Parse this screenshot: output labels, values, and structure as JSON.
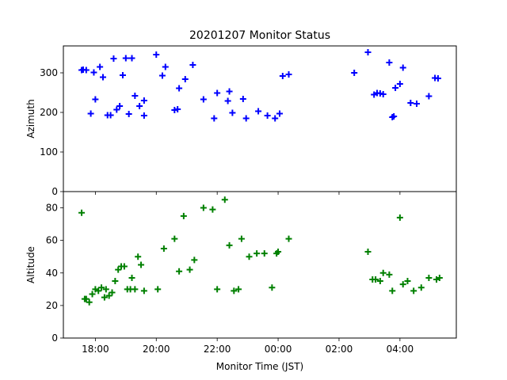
{
  "chart_data": {
    "type": "scatter",
    "title": "20201207 Monitor Status",
    "xlabel": "Monitor Time (JST)",
    "x_tick_labels": [
      "18:00",
      "20:00",
      "22:00",
      "00:00",
      "02:00",
      "04:00"
    ],
    "x_tick_hours": [
      18,
      20,
      22,
      24,
      26,
      28
    ],
    "xlim_hours": [
      16.95,
      29.85
    ],
    "marker": "plus",
    "panels": [
      {
        "ylabel": "Azimuth",
        "ylim": [
          0,
          368
        ],
        "y_ticks": [
          0,
          100,
          200,
          300
        ],
        "color": "#0000ff",
        "x": [
          17.55,
          17.7,
          17.85,
          17.95,
          18.0,
          18.15,
          18.25,
          18.4,
          18.5,
          18.6,
          18.7,
          18.8,
          18.9,
          19.0,
          19.1,
          19.2,
          19.3,
          19.45,
          19.6,
          20.0,
          20.2,
          20.3,
          20.6,
          20.75,
          20.95,
          21.2,
          21.55,
          21.9,
          22.0,
          22.35,
          22.5,
          22.85,
          22.95,
          23.35,
          23.65,
          23.9,
          24.05,
          24.15,
          24.35,
          26.95,
          27.15,
          27.25,
          27.35,
          27.45,
          27.65,
          27.75,
          27.85,
          28.0,
          28.1,
          28.35,
          28.55,
          28.95,
          29.15,
          29.25,
          17.6,
          19.6,
          20.7,
          22.4,
          26.5,
          27.8
        ],
        "y": [
          307,
          307,
          197,
          301,
          233,
          315,
          289,
          193,
          193,
          336,
          207,
          216,
          294,
          337,
          196,
          337,
          242,
          216,
          192,
          346,
          293,
          315,
          206,
          261,
          284,
          320,
          233,
          185,
          249,
          229,
          199,
          234,
          185,
          203,
          192,
          185,
          197,
          292,
          296,
          352,
          245,
          249,
          248,
          246,
          326,
          188,
          262,
          272,
          313,
          224,
          222,
          241,
          287,
          286,
          308,
          230,
          208,
          253,
          300,
          190
        ]
      },
      {
        "ylabel": "Altitude",
        "ylim": [
          0,
          90
        ],
        "y_ticks": [
          0,
          20,
          40,
          60,
          80
        ],
        "color": "#008000",
        "x": [
          17.55,
          17.65,
          17.8,
          17.9,
          18.0,
          18.1,
          18.2,
          18.3,
          18.45,
          18.55,
          18.65,
          18.75,
          18.95,
          19.05,
          19.2,
          19.3,
          19.4,
          19.5,
          19.6,
          20.05,
          20.25,
          20.6,
          20.75,
          20.9,
          21.25,
          21.55,
          21.85,
          22.0,
          22.25,
          22.4,
          22.55,
          22.8,
          23.05,
          23.3,
          23.55,
          23.8,
          23.95,
          24.0,
          24.35,
          26.95,
          27.1,
          27.2,
          27.35,
          27.45,
          27.65,
          27.75,
          28.0,
          28.1,
          28.25,
          28.45,
          28.7,
          28.95,
          29.2,
          29.3,
          17.7,
          18.35,
          18.85,
          19.15,
          21.1,
          22.7
        ],
        "y": [
          77,
          24,
          22,
          27,
          30,
          29,
          31,
          25,
          26,
          28,
          35,
          42,
          44,
          30,
          37,
          30,
          50,
          45,
          29,
          30,
          55,
          61,
          41,
          75,
          48,
          80,
          79,
          30,
          85,
          57,
          29,
          61,
          50,
          52,
          52,
          31,
          52,
          53,
          61,
          53,
          36,
          36,
          35,
          40,
          39,
          29,
          74,
          33,
          35,
          29,
          31,
          37,
          36,
          37,
          24,
          30,
          44,
          30,
          42,
          30
        ]
      }
    ]
  }
}
